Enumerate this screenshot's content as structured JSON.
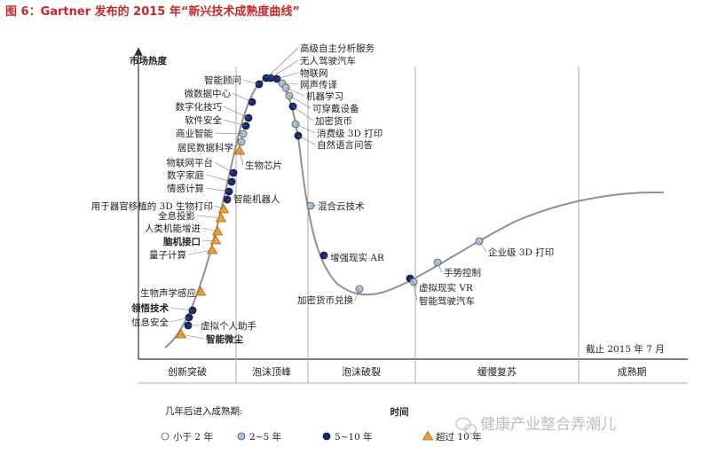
{
  "title": "图 6：Gartner 发布的 2015 年“新兴技术成熟度曲线”",
  "axis": {
    "y_label": "市场热度",
    "x_label": "时间"
  },
  "cutoff": "截止 2015 年 7 月",
  "phases": [
    "创新突破",
    "泡沫顶峰",
    "泡沫破裂",
    "缓慢复苏",
    "成熟期"
  ],
  "legend": {
    "title": "几年后进入成熟期:",
    "items": [
      {
        "label": "小于 2 年",
        "type": "lt2"
      },
      {
        "label": "2~5 年",
        "type": "y2to5"
      },
      {
        "label": "5~10 年",
        "type": "y5to10"
      },
      {
        "label": "超过 10 年",
        "type": "gt10"
      }
    ]
  },
  "colors": {
    "lt2": "#ffffff",
    "y2to5": "#a8c4e0",
    "y5to10": "#1a2a6c",
    "gt10": "#f0a030",
    "title": "#c62828"
  },
  "watermark": "健康产业整合弄潮儿",
  "technologies": [
    {
      "name": "智能微尘",
      "type": "gt10",
      "bold": true
    },
    {
      "name": "虚拟个人助手",
      "type": "y5to10",
      "bold": false
    },
    {
      "name": "信息安全",
      "type": "y5to10",
      "bold": false
    },
    {
      "name": "领悟技术",
      "type": "y5to10",
      "bold": true
    },
    {
      "name": "生物声学感应",
      "type": "gt10",
      "bold": false
    },
    {
      "name": "量子计算",
      "type": "gt10",
      "bold": false
    },
    {
      "name": "脑机接口",
      "type": "gt10",
      "bold": true
    },
    {
      "name": "人类机能增进",
      "type": "gt10",
      "bold": false
    },
    {
      "name": "全息投影",
      "type": "gt10",
      "bold": false
    },
    {
      "name": "用于器官移植的 3D 生物打印",
      "type": "gt10",
      "bold": false
    },
    {
      "name": "智能机器人",
      "type": "y5to10",
      "bold": false
    },
    {
      "name": "情感计算",
      "type": "y5to10",
      "bold": false
    },
    {
      "name": "数字家庭",
      "type": "y5to10",
      "bold": false
    },
    {
      "name": "物联网平台",
      "type": "y5to10",
      "bold": false
    },
    {
      "name": "生物芯片",
      "type": "gt10",
      "bold": false
    },
    {
      "name": "居民数据科学",
      "type": "y2to5",
      "bold": false
    },
    {
      "name": "商业智能",
      "type": "y2to5",
      "bold": false
    },
    {
      "name": "软件安全",
      "type": "y5to10",
      "bold": false
    },
    {
      "name": "数字化技巧",
      "type": "y5to10",
      "bold": false
    },
    {
      "name": "微数据中心",
      "type": "y5to10",
      "bold": false
    },
    {
      "name": "智能顾问",
      "type": "y5to10",
      "bold": false
    },
    {
      "name": "高级自主分析服务",
      "type": "y5to10",
      "bold": false
    },
    {
      "name": "无人驾驶汽车",
      "type": "y5to10",
      "bold": false
    },
    {
      "name": "物联网",
      "type": "y5to10",
      "bold": false
    },
    {
      "name": "网声传译",
      "type": "y2to5",
      "bold": false
    },
    {
      "name": "机器学习",
      "type": "y2to5",
      "bold": false
    },
    {
      "name": "可穿戴设备",
      "type": "y2to5",
      "bold": false
    },
    {
      "name": "加密货币",
      "type": "y5to10",
      "bold": false
    },
    {
      "name": "消费级 3D 打印",
      "type": "y2to5",
      "bold": false
    },
    {
      "name": "自然语言问答",
      "type": "y5to10",
      "bold": false
    },
    {
      "name": "混合云技术",
      "type": "y2to5",
      "bold": false
    },
    {
      "name": "增强现实 AR",
      "type": "y5to10",
      "bold": false
    },
    {
      "name": "加密货币兑换",
      "type": "y2to5",
      "bold": false
    },
    {
      "name": "虚拟现实 VR",
      "type": "y5to10",
      "bold": false
    },
    {
      "name": "智能驾驶汽车",
      "type": "y2to5",
      "bold": false
    },
    {
      "name": "手势控制",
      "type": "y2to5",
      "bold": false
    },
    {
      "name": "企业级 3D 打印",
      "type": "y2to5",
      "bold": false
    }
  ]
}
